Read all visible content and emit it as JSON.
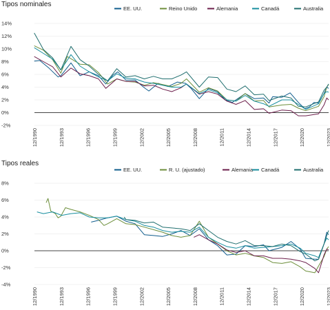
{
  "chart_data": [
    {
      "type": "line",
      "title": "Tipos nominales",
      "ylim": [
        -2,
        14
      ],
      "yticks": [
        "-2%",
        "0%",
        "2%",
        "4%",
        "6%",
        "8%",
        "10%",
        "12%",
        "14%"
      ],
      "xticks": [
        "12/1990",
        "12/1993",
        "12/1996",
        "12/1999",
        "12/2002",
        "12/2005",
        "12/2008",
        "12/2011",
        "12/2014",
        "12/2017",
        "12/2020",
        "12/2023"
      ],
      "grid": true,
      "legend_position": "top-right",
      "series": [
        {
          "name": "EE. UU.",
          "color": "#0f5c8c",
          "x": [
            1990.9,
            1991.5,
            1992.5,
            1993.5,
            1993.8,
            1994.9,
            1995.9,
            1996.9,
            1997.9,
            1998.7,
            1999.5,
            2000.0,
            2000.9,
            2001.9,
            2002.9,
            2003.4,
            2004.4,
            2005.5,
            2006.5,
            2007.4,
            2008.0,
            2008.9,
            2009.9,
            2010.9,
            2011.7,
            2012.5,
            2013.9,
            2014.9,
            2015.9,
            2016.5,
            2016.9,
            2017.9,
            2018.8,
            2019.7,
            2020.4,
            2020.9,
            2021.4,
            2021.9,
            2022.5,
            2022.8,
            2023.0
          ],
          "y": [
            8.1,
            8.2,
            7.0,
            5.6,
            5.8,
            7.8,
            5.8,
            6.4,
            5.8,
            4.5,
            5.9,
            6.4,
            5.1,
            5.1,
            3.9,
            3.4,
            4.6,
            4.1,
            4.8,
            4.6,
            3.8,
            2.2,
            3.8,
            3.3,
            2.0,
            1.6,
            3.0,
            2.2,
            2.3,
            1.5,
            2.5,
            2.4,
            3.1,
            1.6,
            0.6,
            0.9,
            1.6,
            1.5,
            3.0,
            4.0,
            3.8
          ]
        },
        {
          "name": "Reino Unido",
          "color": "#6c8e3a",
          "x": [
            1990.9,
            1991.9,
            1992.9,
            1993.8,
            1994.5,
            1995.9,
            1996.9,
            1997.9,
            1998.9,
            1999.9,
            2000.9,
            2001.9,
            2002.9,
            2003.9,
            2004.9,
            2005.9,
            2006.9,
            2007.5,
            2008.9,
            2009.9,
            2010.9,
            2011.9,
            2012.9,
            2013.9,
            2014.9,
            2015.9,
            2016.5,
            2017.9,
            2018.9,
            2019.7,
            2020.5,
            2021.9,
            2022.5,
            2022.8,
            2023.0
          ],
          "y": [
            10.5,
            9.8,
            8.3,
            6.2,
            8.8,
            7.6,
            7.5,
            6.3,
            4.5,
            5.3,
            4.9,
            4.8,
            4.3,
            4.7,
            4.4,
            4.1,
            4.6,
            5.3,
            3.2,
            3.9,
            3.4,
            2.0,
            1.8,
            3.0,
            1.8,
            1.9,
            0.9,
            1.2,
            1.3,
            0.7,
            0.3,
            1.0,
            2.5,
            4.0,
            4.4
          ]
        },
        {
          "name": "Alemania",
          "color": "#6b1d4a",
          "x": [
            1990.9,
            1991.9,
            1992.9,
            1993.8,
            1994.9,
            1995.9,
            1996.9,
            1997.9,
            1998.7,
            1999.9,
            2000.9,
            2001.9,
            2002.9,
            2003.9,
            2004.9,
            2005.9,
            2006.9,
            2007.5,
            2008.9,
            2009.9,
            2010.9,
            2011.9,
            2012.9,
            2013.9,
            2014.9,
            2015.9,
            2016.5,
            2017.9,
            2018.9,
            2019.7,
            2020.5,
            2021.9,
            2022.5,
            2022.8,
            2023.0
          ],
          "y": [
            8.8,
            8.0,
            7.2,
            5.6,
            7.0,
            6.1,
            5.8,
            5.3,
            3.8,
            5.3,
            4.9,
            4.9,
            4.2,
            4.3,
            3.7,
            3.3,
            3.9,
            4.5,
            2.9,
            3.3,
            2.9,
            1.8,
            1.3,
            1.9,
            0.5,
            0.6,
            -0.1,
            0.4,
            0.3,
            -0.5,
            -0.5,
            -0.2,
            1.2,
            2.3,
            2.0
          ]
        },
        {
          "name": "Canadá",
          "color": "#168d9e",
          "x": [
            1990.9,
            1991.9,
            1992.9,
            1993.8,
            1994.9,
            1995.9,
            1996.9,
            1997.9,
            1998.9,
            1999.9,
            2000.9,
            2001.9,
            2002.9,
            2003.9,
            2004.9,
            2005.9,
            2006.9,
            2007.5,
            2008.9,
            2009.9,
            2010.9,
            2011.9,
            2012.9,
            2013.9,
            2014.9,
            2015.9,
            2016.5,
            2017.9,
            2018.9,
            2019.7,
            2020.5,
            2021.9,
            2022.5,
            2022.8,
            2023.0
          ],
          "y": [
            10.2,
            9.3,
            8.4,
            6.7,
            9.1,
            7.3,
            6.4,
            5.6,
            5.0,
            6.1,
            5.4,
            5.3,
            4.8,
            4.6,
            4.3,
            4.0,
            4.0,
            4.5,
            3.0,
            3.6,
            3.1,
            2.0,
            1.8,
            2.7,
            1.8,
            1.4,
            1.0,
            2.0,
            2.0,
            1.3,
            0.5,
            1.4,
            3.0,
            3.3,
            3.2
          ]
        },
        {
          "name": "Australia",
          "color": "#1f6e6e",
          "x": [
            1990.9,
            1991.9,
            1992.9,
            1993.8,
            1994.9,
            1995.9,
            1996.9,
            1997.9,
            1998.9,
            1999.9,
            2000.9,
            2001.9,
            2002.9,
            2003.9,
            2004.9,
            2005.9,
            2006.9,
            2007.5,
            2008.9,
            2009.9,
            2010.9,
            2011.9,
            2012.9,
            2013.9,
            2014.9,
            2015.9,
            2016.5,
            2017.9,
            2018.9,
            2019.7,
            2020.5,
            2021.9,
            2022.5,
            2022.8,
            2023.0
          ],
          "y": [
            12.5,
            9.9,
            8.6,
            6.7,
            10.4,
            8.3,
            7.3,
            6.0,
            5.0,
            6.9,
            5.6,
            5.8,
            5.3,
            5.7,
            5.3,
            5.3,
            5.9,
            6.4,
            4.0,
            5.6,
            5.5,
            3.7,
            3.3,
            4.2,
            2.8,
            2.9,
            1.9,
            2.6,
            2.3,
            1.0,
            0.9,
            1.7,
            3.5,
            4.0,
            4.5
          ]
        }
      ]
    },
    {
      "type": "line",
      "title": "Tipos reales",
      "ylim": [
        -4,
        8
      ],
      "yticks": [
        "-4%",
        "-2%",
        "0%",
        "2%",
        "4%",
        "6%",
        "8%"
      ],
      "xticks": [
        "12/1990",
        "12/1993",
        "12/1996",
        "12/1999",
        "12/2002",
        "12/2005",
        "12/2008",
        "12/2011",
        "12/2014",
        "12/2017",
        "12/2020",
        "12/2023"
      ],
      "grid": true,
      "legend_position": "top-right",
      "series": [
        {
          "name": "EE. UU.",
          "color": "#0f5c8c",
          "x": [
            1997.1,
            1997.9,
            1998.9,
            1999.9,
            2000.9,
            2001.9,
            2002.9,
            2003.9,
            2004.9,
            2005.9,
            2006.9,
            2007.9,
            2008.9,
            2009.9,
            2010.9,
            2011.9,
            2012.9,
            2013.9,
            2014.9,
            2015.9,
            2016.5,
            2017.9,
            2018.9,
            2019.9,
            2020.5,
            2021.5,
            2021.9,
            2022.5,
            2022.8,
            2023.0
          ],
          "y": [
            3.4,
            3.6,
            3.9,
            4.1,
            3.5,
            3.2,
            1.9,
            1.8,
            1.7,
            2.0,
            2.4,
            1.8,
            2.6,
            1.3,
            0.6,
            -0.5,
            -0.4,
            0.6,
            0.5,
            0.7,
            0.0,
            0.4,
            1.1,
            0.2,
            -0.9,
            -1.0,
            -1.0,
            0.8,
            2.2,
            1.9
          ]
        },
        {
          "name": "R. U. (ajustado)",
          "color": "#6c8e3a",
          "x": [
            1992.2,
            1992.4,
            1992.7,
            1993.2,
            1993.5,
            1993.8,
            1994.3,
            1994.9,
            1995.9,
            1996.9,
            1997.9,
            1998.5,
            1998.9,
            1999.9,
            2000.9,
            2001.9,
            2002.9,
            2003.9,
            2004.9,
            2005.9,
            2006.9,
            2007.9,
            2008.9,
            2009.9,
            2010.9,
            2011.9,
            2012.9,
            2013.9,
            2014.9,
            2015.9,
            2016.9,
            2017.9,
            2018.9,
            2019.9,
            2020.5,
            2021.5,
            2021.9,
            2022.5,
            2022.8,
            2023.0
          ],
          "y": [
            5.7,
            6.2,
            4.7,
            4.4,
            3.9,
            4.1,
            5.1,
            4.9,
            4.6,
            4.2,
            3.7,
            3.0,
            3.2,
            3.8,
            3.2,
            3.1,
            2.8,
            2.5,
            2.2,
            1.8,
            1.6,
            1.8,
            3.5,
            1.6,
            0.8,
            0.0,
            -0.5,
            -0.3,
            -0.6,
            -0.8,
            -1.4,
            -1.5,
            -1.3,
            -1.9,
            -2.4,
            -2.6,
            -1.8,
            -0.7,
            0.2,
            0.5
          ]
        },
        {
          "name": "Alemania",
          "color": "#6b1d4a",
          "x": [
            2008.3,
            2008.9,
            2009.9,
            2010.9,
            2011.9,
            2012.9,
            2013.9,
            2014.9,
            2015.9,
            2016.9,
            2017.9,
            2018.9,
            2019.9,
            2020.5,
            2021.5,
            2021.9,
            2022.5,
            2022.8,
            2023.0
          ],
          "y": [
            1.6,
            1.9,
            1.3,
            0.8,
            0.1,
            -0.2,
            0.0,
            -0.6,
            -0.6,
            -0.9,
            -0.9,
            -1.0,
            -1.2,
            -1.4,
            -2.1,
            -2.6,
            -0.5,
            0.2,
            0.1
          ]
        },
        {
          "name": "Canadá",
          "color": "#168d9e",
          "x": [
            1991.2,
            1991.9,
            1992.9,
            1993.9,
            1994.9,
            1995.9,
            1996.9,
            1997.9,
            1998.9,
            1999.9,
            2000.9,
            2001.9,
            2002.9,
            2003.9,
            2004.9,
            2005.9,
            2006.9,
            2007.9,
            2008.9,
            2009.9,
            2010.9,
            2011.9,
            2012.9,
            2013.9,
            2014.9,
            2015.9,
            2016.9,
            2017.9,
            2018.9,
            2019.9,
            2020.5,
            2021.5,
            2021.9,
            2022.5,
            2022.8,
            2023.0
          ],
          "y": [
            4.6,
            4.4,
            4.6,
            4.2,
            4.4,
            4.5,
            4.0,
            3.9,
            3.9,
            4.1,
            3.7,
            3.5,
            3.0,
            2.8,
            2.4,
            2.2,
            2.3,
            2.2,
            2.8,
            1.6,
            1.0,
            0.5,
            0.3,
            0.6,
            0.3,
            0.4,
            0.5,
            0.6,
            0.8,
            0.3,
            -0.3,
            -0.6,
            -0.8,
            0.8,
            1.5,
            1.3
          ]
        },
        {
          "name": "Australia",
          "color": "#1f6e6e",
          "x": [
            2000.7,
            2000.9,
            2001.9,
            2002.9,
            2003.9,
            2004.9,
            2005.9,
            2006.9,
            2007.9,
            2008.9,
            2009.9,
            2010.9,
            2011.9,
            2012.9,
            2013.9,
            2014.9,
            2015.9,
            2016.9,
            2017.9,
            2018.9,
            2019.9,
            2020.5,
            2021.5,
            2021.9,
            2022.5,
            2022.8,
            2023.0
          ],
          "y": [
            4.0,
            3.7,
            3.6,
            3.3,
            3.4,
            2.8,
            2.7,
            2.6,
            2.4,
            3.2,
            2.4,
            1.6,
            1.1,
            0.8,
            1.2,
            0.6,
            0.6,
            0.5,
            0.8,
            0.6,
            -0.1,
            -0.4,
            -1.2,
            -1.0,
            0.8,
            1.8,
            2.4
          ]
        }
      ]
    }
  ]
}
